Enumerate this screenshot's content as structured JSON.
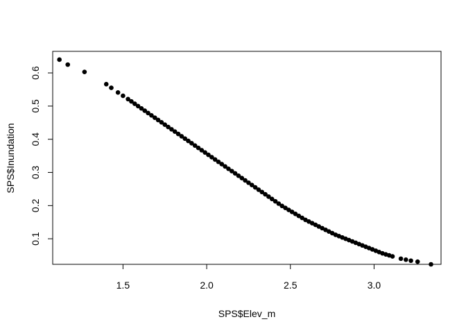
{
  "chart_data": {
    "type": "scatter",
    "title": "",
    "xlabel": "SPS$Elev_m",
    "ylabel": "SPS$Inundation",
    "xlim": [
      1.08,
      3.4
    ],
    "ylim": [
      0.023,
      0.665
    ],
    "xticks": [
      1.5,
      2.0,
      2.5,
      3.0
    ],
    "xtick_labels": [
      "1.5",
      "2.0",
      "2.5",
      "3.0"
    ],
    "yticks": [
      0.1,
      0.2,
      0.3,
      0.4,
      0.5,
      0.6
    ],
    "ytick_labels": [
      "0.1",
      "0.2",
      "0.3",
      "0.4",
      "0.5",
      "0.6"
    ],
    "grid": false,
    "legend": "none",
    "marker_color": "#000000",
    "x": [
      1.12,
      1.17,
      1.27,
      1.4,
      1.43,
      1.47,
      1.5,
      1.53,
      1.55,
      1.57,
      1.59,
      1.61,
      1.63,
      1.65,
      1.67,
      1.69,
      1.71,
      1.73,
      1.75,
      1.77,
      1.79,
      1.81,
      1.83,
      1.85,
      1.87,
      1.89,
      1.91,
      1.93,
      1.95,
      1.97,
      1.99,
      2.01,
      2.03,
      2.05,
      2.07,
      2.09,
      2.11,
      2.13,
      2.15,
      2.17,
      2.19,
      2.21,
      2.23,
      2.25,
      2.27,
      2.29,
      2.31,
      2.33,
      2.35,
      2.37,
      2.39,
      2.41,
      2.43,
      2.45,
      2.47,
      2.49,
      2.51,
      2.53,
      2.55,
      2.57,
      2.59,
      2.61,
      2.63,
      2.65,
      2.67,
      2.69,
      2.71,
      2.73,
      2.75,
      2.77,
      2.79,
      2.81,
      2.83,
      2.85,
      2.87,
      2.89,
      2.91,
      2.93,
      2.95,
      2.97,
      2.99,
      3.01,
      3.03,
      3.05,
      3.07,
      3.09,
      3.11,
      3.16,
      3.19,
      3.22,
      3.26,
      3.34
    ],
    "y": [
      0.64,
      0.625,
      0.603,
      0.566,
      0.555,
      0.541,
      0.531,
      0.521,
      0.514,
      0.507,
      0.5,
      0.493,
      0.486,
      0.479,
      0.472,
      0.465,
      0.458,
      0.451,
      0.444,
      0.437,
      0.43,
      0.423,
      0.416,
      0.409,
      0.402,
      0.395,
      0.388,
      0.381,
      0.374,
      0.367,
      0.36,
      0.353,
      0.346,
      0.339,
      0.332,
      0.325,
      0.318,
      0.311,
      0.304,
      0.297,
      0.29,
      0.283,
      0.276,
      0.269,
      0.262,
      0.255,
      0.248,
      0.241,
      0.234,
      0.227,
      0.22,
      0.213,
      0.206,
      0.199,
      0.193,
      0.187,
      0.181,
      0.175,
      0.169,
      0.163,
      0.157,
      0.152,
      0.147,
      0.142,
      0.137,
      0.132,
      0.127,
      0.122,
      0.117,
      0.112,
      0.108,
      0.104,
      0.1,
      0.096,
      0.092,
      0.088,
      0.084,
      0.08,
      0.076,
      0.072,
      0.068,
      0.064,
      0.06,
      0.056,
      0.053,
      0.05,
      0.047,
      0.04,
      0.037,
      0.034,
      0.031,
      0.023
    ]
  }
}
